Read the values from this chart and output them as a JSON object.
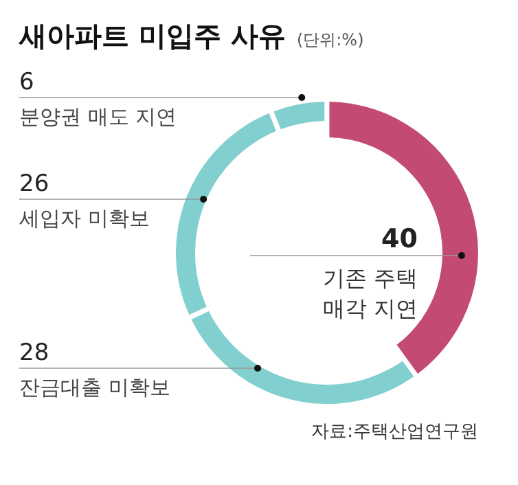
{
  "chart_data": {
    "type": "donut",
    "title": "새아파트 미입주 사유",
    "subtitle": "(단위:%)",
    "categories": [
      "기존 주택 매각 지연",
      "잔금대출 미확보",
      "세입자 미확보",
      "분양권 매도 지연"
    ],
    "values": [
      40,
      28,
      26,
      6
    ],
    "colors": [
      "#c24a73",
      "#82cfcf",
      "#82cfcf",
      "#82cfcf"
    ],
    "data_labels": true,
    "annotations": [
      "자료:주택산업연구원"
    ]
  }
}
